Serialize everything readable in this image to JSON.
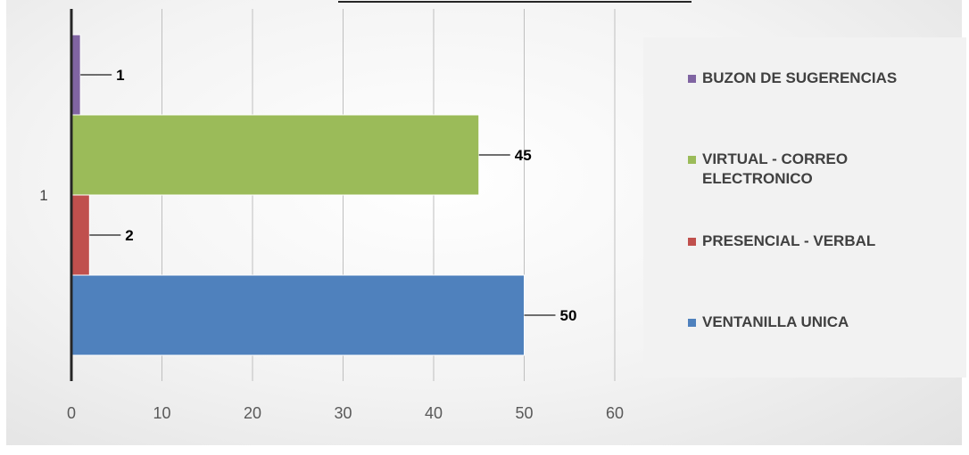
{
  "chart_data": {
    "type": "bar",
    "orientation": "horizontal",
    "categories": [
      "1"
    ],
    "series": [
      {
        "name": "VENTANILLA UNICA",
        "values": [
          50
        ],
        "color": "#4f81bd"
      },
      {
        "name": "PRESENCIAL - VERBAL",
        "values": [
          2
        ],
        "color": "#c0504d"
      },
      {
        "name": "VIRTUAL - CORREO ELECTRONICO",
        "values": [
          45
        ],
        "color": "#9bbb59"
      },
      {
        "name": "BUZON DE SUGERENCIAS",
        "values": [
          1
        ],
        "color": "#8064a2"
      }
    ],
    "xlim": [
      0,
      60
    ],
    "xticks": [
      "0",
      "10",
      "20",
      "30",
      "40",
      "50",
      "60"
    ],
    "data_labels": [
      "50",
      "2",
      "45",
      "1"
    ],
    "grid": true,
    "legend_position": "right"
  },
  "legend_items": [
    {
      "label": "BUZON DE SUGERENCIAS",
      "color": "#8064a2"
    },
    {
      "label": "VIRTUAL - CORREO ELECTRONICO",
      "color": "#9bbb59"
    },
    {
      "label": "PRESENCIAL - VERBAL",
      "color": "#c0504d"
    },
    {
      "label": "VENTANILLA UNICA",
      "color": "#4f81bd"
    }
  ]
}
